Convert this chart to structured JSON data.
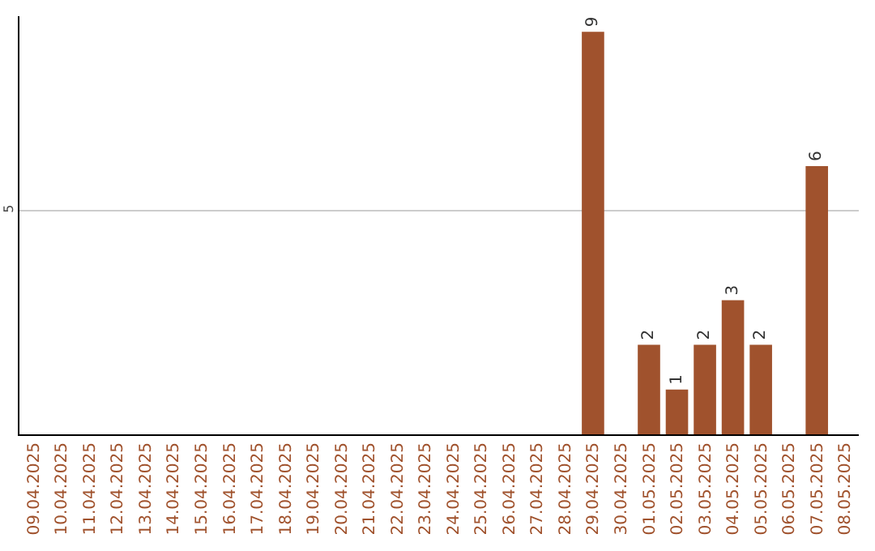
{
  "chart_data": {
    "type": "bar",
    "categories": [
      "09.04.2025",
      "10.04.2025",
      "11.04.2025",
      "12.04.2025",
      "13.04.2025",
      "14.04.2025",
      "15.04.2025",
      "16.04.2025",
      "17.04.2025",
      "18.04.2025",
      "19.04.2025",
      "20.04.2025",
      "21.04.2025",
      "22.04.2025",
      "23.04.2025",
      "24.04.2025",
      "25.04.2025",
      "26.04.2025",
      "27.04.2025",
      "28.04.2025",
      "29.04.2025",
      "30.04.2025",
      "01.05.2025",
      "02.05.2025",
      "03.05.2025",
      "04.05.2025",
      "05.05.2025",
      "06.05.2025",
      "07.05.2025",
      "08.05.2025"
    ],
    "values": [
      null,
      null,
      null,
      null,
      null,
      null,
      null,
      null,
      null,
      null,
      null,
      null,
      null,
      null,
      null,
      null,
      null,
      null,
      null,
      null,
      9,
      null,
      2,
      1,
      2,
      3,
      2,
      null,
      6,
      null
    ],
    "color": "#a0522d",
    "ylim": [
      0,
      9.35
    ],
    "yticks": [
      5
    ],
    "grid": "y",
    "data_labels": true
  }
}
